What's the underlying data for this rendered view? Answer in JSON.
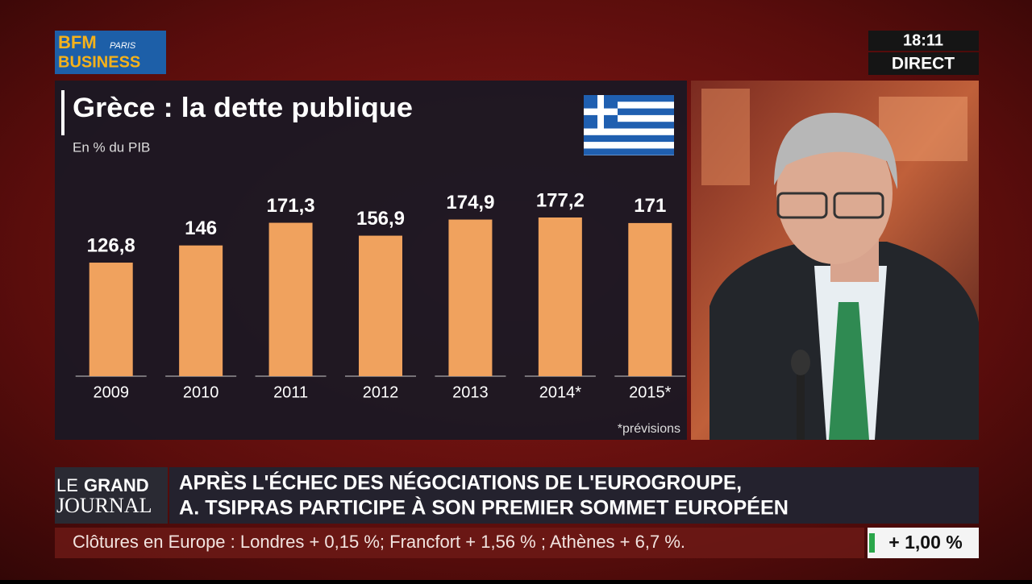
{
  "chart_data": {
    "type": "bar",
    "title": "Grèce : la dette publique",
    "subtitle": "En % du PIB",
    "categories": [
      "2009",
      "2010",
      "2011",
      "2012",
      "2013",
      "2014*",
      "2015*"
    ],
    "values": [
      126.8,
      146,
      171.3,
      156.9,
      174.9,
      177.2,
      171
    ],
    "value_labels": [
      "126,8",
      "146",
      "171,3",
      "156,9",
      "174,9",
      "177,2",
      "171"
    ],
    "color": "#f0a25e",
    "note": "*prévisions"
  },
  "logo": {
    "line1": "BFM",
    "city": "PARIS",
    "line2": "BUSINESS"
  },
  "clock": {
    "time": "18:11",
    "status": "DIRECT"
  },
  "program": {
    "line1": "LE",
    "line2": "GRAND",
    "line3": "JOURNAL"
  },
  "headline": {
    "lines": [
      "APRÈS L'ÉCHEC DES NÉGOCIATIONS DE L'EUROGROUPE,",
      "A. TSIPRAS PARTICIPE À SON PREMIER SOMMET EUROPÉEN"
    ]
  },
  "ticker": {
    "text": "Clôtures en Europe : Londres + 0,15 %; Francfort + 1,56 % ; Athènes + 6,7 %.",
    "index": "+ 1,00 %"
  }
}
